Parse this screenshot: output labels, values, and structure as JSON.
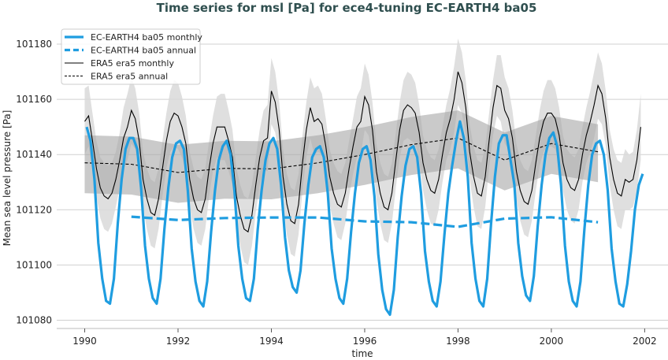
{
  "chart_data": {
    "type": "line",
    "title": "Time series for msl [Pa] for ece4-tuning EC-EARTH4 ba05",
    "xlabel": "time",
    "ylabel": "Mean sea level pressure [Pa]",
    "xlim": [
      1989.4,
      2002.5
    ],
    "ylim": [
      101077,
      101186
    ],
    "xticks": [
      1990,
      1992,
      1994,
      1996,
      1998,
      2000,
      2002
    ],
    "yticks": [
      101080,
      101100,
      101120,
      101140,
      101160,
      101180
    ],
    "grid": "horizontal",
    "legend_placement": "top-left",
    "colors": {
      "ec_earth": "#1f9de0",
      "era5": "#000000",
      "era5_spread_light": "#d9d9d9",
      "era5_spread_dark": "#a6a6a6",
      "title": "#2f4f4f"
    },
    "monthly_start_year": 1990,
    "series": [
      {
        "name": "EC-EARTH4 ba05 monthly",
        "style": "solid-thick",
        "color": "#1f9de0",
        "values": [
          101150,
          101145,
          101131,
          101108,
          101095,
          101087,
          101086,
          101095,
          101115,
          101131,
          101142,
          101146,
          101146,
          101142,
          101128,
          101107,
          101095,
          101088,
          101086,
          101095,
          101113,
          101128,
          101139,
          101144,
          101145,
          101142,
          101127,
          101106,
          101094,
          101087,
          101085,
          101094,
          101112,
          101127,
          101138,
          101143,
          101145,
          101140,
          101127,
          101107,
          101095,
          101088,
          101087,
          101095,
          101113,
          101127,
          101138,
          101144,
          101146,
          101142,
          101129,
          101110,
          101098,
          101092,
          101090,
          101098,
          101115,
          101129,
          101139,
          101142,
          101143,
          101139,
          101126,
          101106,
          101095,
          101088,
          101086,
          101095,
          101112,
          101126,
          101137,
          101142,
          101143,
          101138,
          101125,
          101104,
          101091,
          101084,
          101082,
          101091,
          101110,
          101125,
          101136,
          101142,
          101143,
          101139,
          101126,
          101105,
          101094,
          101087,
          101085,
          101094,
          101111,
          101126,
          101136,
          101145,
          101152,
          101146,
          101132,
          101108,
          101095,
          101087,
          101085,
          101095,
          101115,
          101132,
          101144,
          101147,
          101147,
          101138,
          101129,
          101108,
          101096,
          101089,
          101087,
          101096,
          101114,
          101129,
          101140,
          101146,
          101148,
          101143,
          101129,
          101107,
          101094,
          101087,
          101085,
          101094,
          101113,
          101129,
          101140,
          101144,
          101145,
          101140,
          101127,
          101106,
          101094,
          101086,
          101085,
          101093,
          101105,
          101120,
          101129,
          101133
        ]
      },
      {
        "name": "EC-EARTH4 ba05 annual",
        "style": "dashed-thick",
        "color": "#1f9de0",
        "x": [
          1991,
          1992,
          1993,
          1994,
          1995,
          1996,
          1997,
          1998,
          1999,
          2000,
          2001
        ],
        "values": [
          101117.5,
          101116.3,
          101117,
          101117.2,
          101117.2,
          101115.8,
          101115.5,
          101113.8,
          101116.8,
          101117.3,
          101115.5
        ]
      },
      {
        "name": "ERA5 era5 monthly",
        "style": "solid-thin",
        "color": "#000000",
        "values": [
          101152,
          101154,
          101145,
          101135,
          101128,
          101125,
          101124,
          101126,
          101131,
          101138,
          101146,
          101150,
          101156,
          101153,
          101145,
          101131,
          101124,
          101119,
          101118,
          101124,
          101135,
          101145,
          101152,
          101155,
          101154,
          101150,
          101144,
          101131,
          101124,
          101120,
          101119,
          101124,
          101135,
          101144,
          101150,
          101150,
          101150,
          101145,
          101139,
          101125,
          101118,
          101113,
          101112,
          101118,
          101129,
          101139,
          101145,
          101146,
          101163,
          101159,
          101149,
          101132,
          101122,
          101116,
          101115,
          101122,
          101137,
          101149,
          101157,
          101152,
          101153,
          101151,
          101143,
          101132,
          101126,
          101122,
          101121,
          101126,
          101135,
          101143,
          101150,
          101152,
          101161,
          101158,
          101149,
          101134,
          101126,
          101121,
          101120,
          101126,
          101138,
          101149,
          101156,
          101158,
          101157,
          101155,
          101148,
          101137,
          101131,
          101127,
          101126,
          101131,
          101140,
          101148,
          101153,
          101160,
          101170,
          101166,
          101157,
          101141,
          101132,
          101126,
          101125,
          101132,
          101145,
          101157,
          101165,
          101164,
          101156,
          101153,
          101146,
          101134,
          101127,
          101123,
          101122,
          101127,
          101137,
          101146,
          101152,
          101155,
          101155,
          101153,
          101147,
          101137,
          101131,
          101128,
          101127,
          101131,
          101140,
          101147,
          101152,
          101158,
          101165,
          101162,
          101153,
          101139,
          101131,
          101126,
          101125,
          101131,
          101130,
          101131,
          101138,
          101150
        ],
        "spread_by_calendar_month": [
          12,
          11,
          10,
          10,
          11,
          12,
          12,
          11,
          10,
          10,
          11,
          12
        ]
      },
      {
        "name": "ERA5 era5 annual",
        "style": "dashed-thin",
        "color": "#000000",
        "x": [
          1990,
          1991,
          1992,
          1993,
          1994,
          1995,
          1996,
          1997,
          1998,
          1999,
          2000,
          2001
        ],
        "values": [
          101137,
          101136.5,
          101133.5,
          101135,
          101134.8,
          101137,
          101140,
          101143.6,
          101146,
          101138,
          101144,
          101141
        ],
        "band_lower": [
          101126,
          101125.5,
          101122.5,
          101124,
          101123.8,
          101126,
          101129,
          101132.6,
          101135,
          101127,
          101133,
          101130
        ],
        "band_upper": [
          101147,
          101146.5,
          101143.5,
          101145,
          101144.8,
          101147,
          101150,
          101153.6,
          101156,
          101148,
          101154,
          101151
        ]
      }
    ]
  }
}
